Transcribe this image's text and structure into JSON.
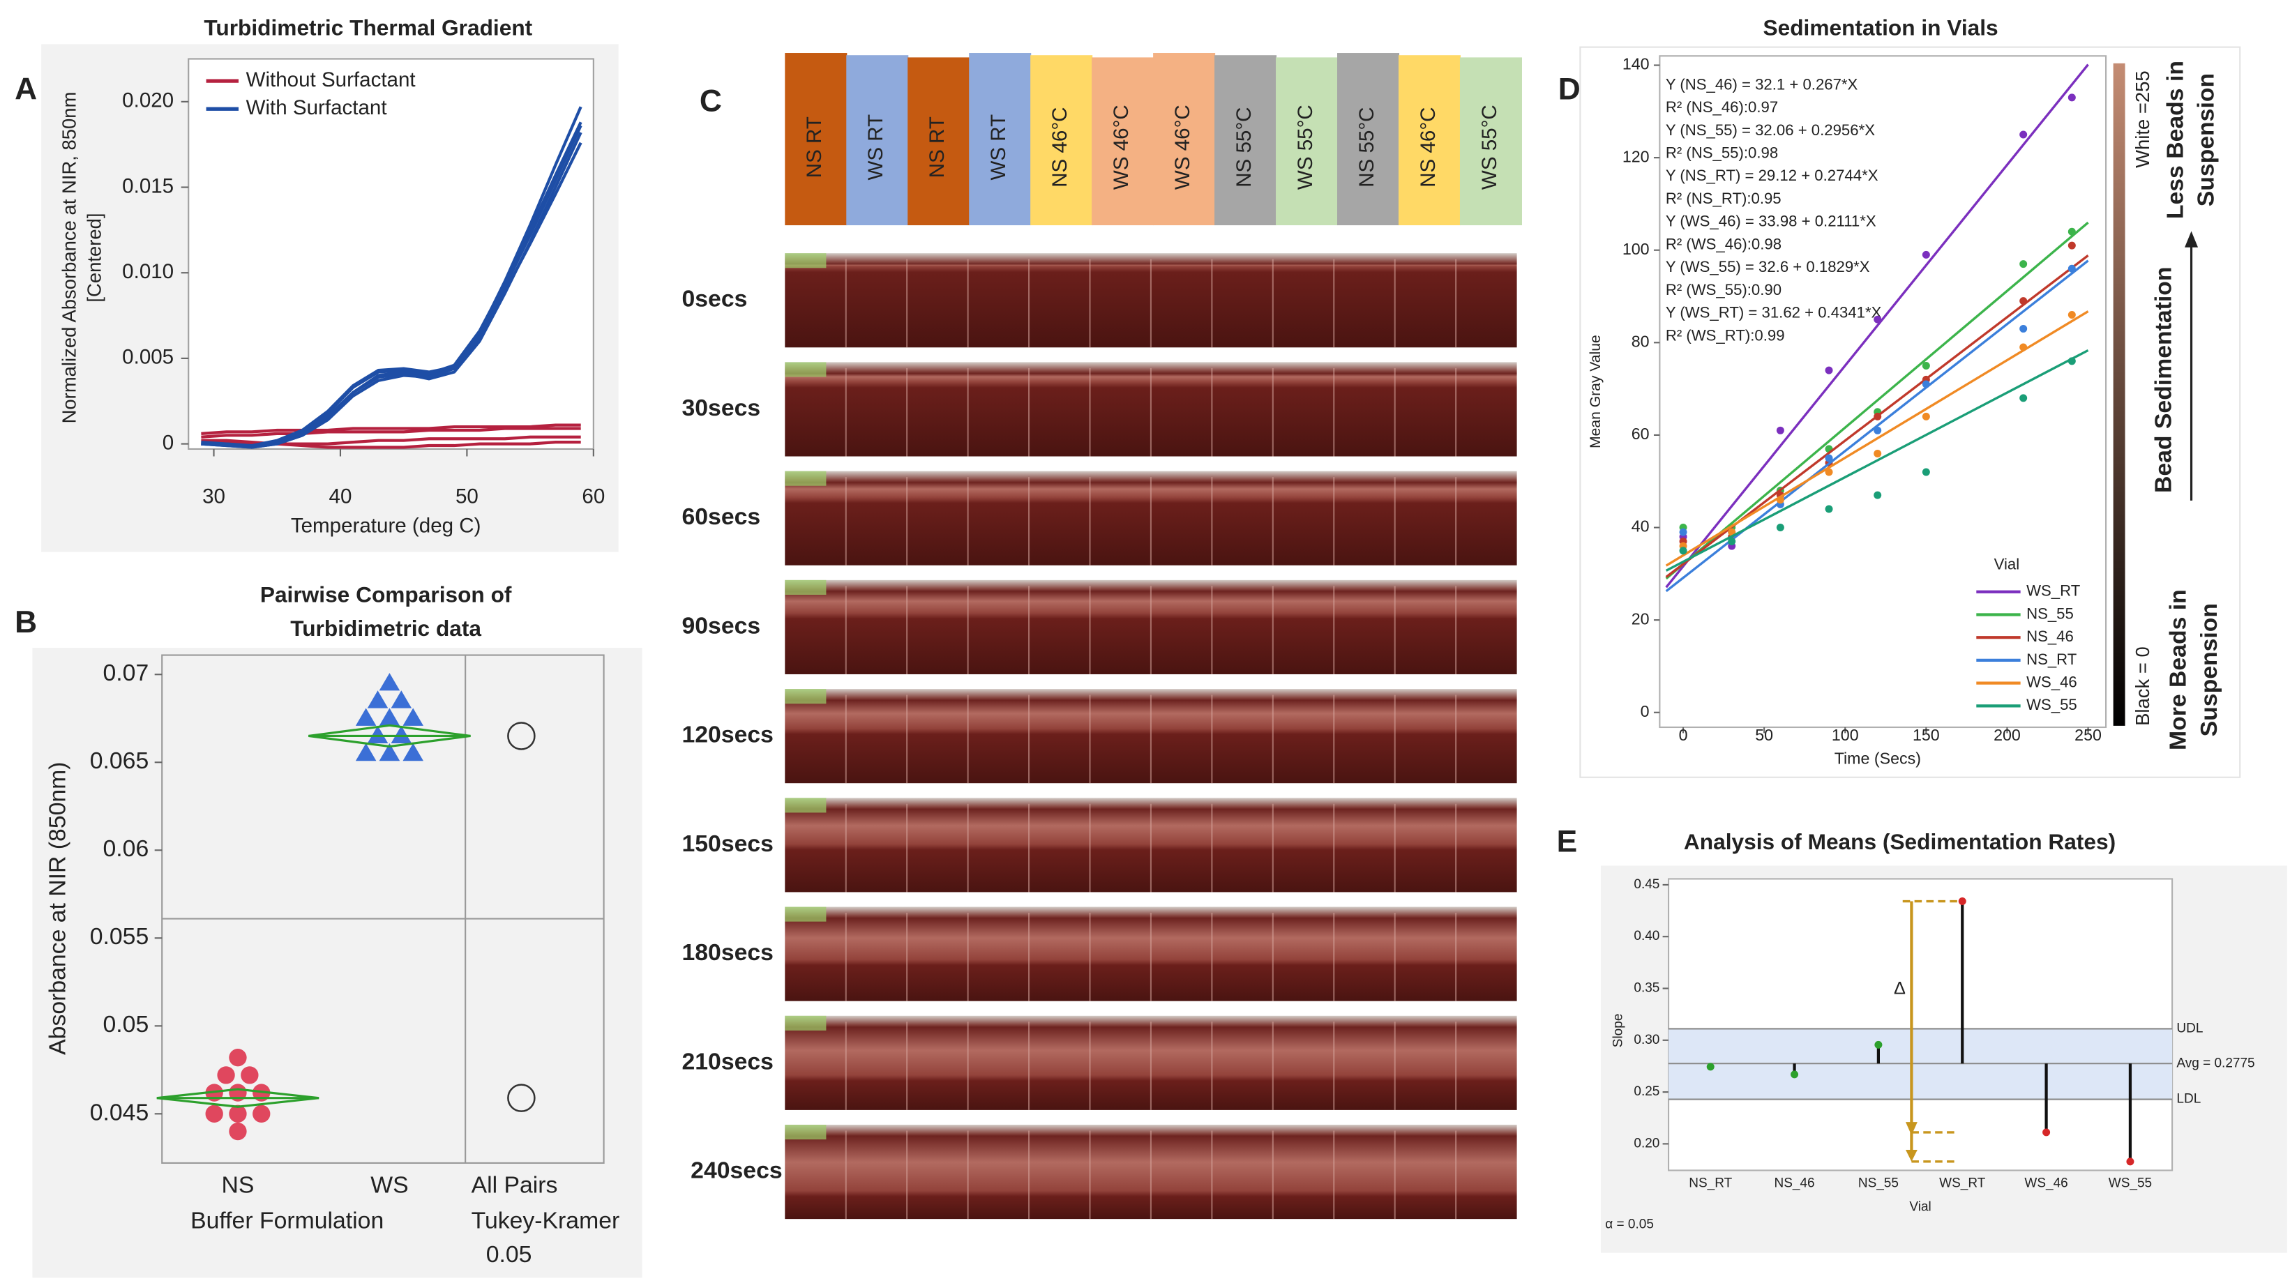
{
  "chart_data": [
    {
      "type": "line",
      "panel": "A",
      "title": "Turbidimetric Thermal Gradient",
      "x_label": "Temperature (deg C)",
      "y_label": [
        "Normalized Absorbance at NIR, 850nm",
        "[Centered]"
      ],
      "x": [
        29,
        31,
        33,
        35,
        37,
        39,
        41,
        43,
        45,
        47,
        49,
        51,
        53,
        55,
        57,
        59
      ],
      "xlim": [
        28,
        60
      ],
      "xticks": [
        30,
        40,
        50,
        60
      ],
      "ylim": [
        -0.0003,
        0.0225
      ],
      "yticks": [
        0,
        0.005,
        {
          "value": 0.01,
          "label": "0.010"
        },
        0.015,
        {
          "value": 0.02,
          "label": "0.020"
        }
      ],
      "legend": "upper left",
      "series": [
        {
          "name": "Without Surfactant",
          "color": "#b5213f",
          "values": [
            [
              0.0006,
              0.0007,
              0.0007,
              0.0008,
              0.0008,
              0.0008,
              0.0009,
              0.0009,
              0.0009,
              0.0009,
              0.001,
              0.001,
              0.001,
              0.001,
              0.0011,
              0.0011
            ],
            [
              0.0004,
              0.0005,
              0.0005,
              0.0006,
              0.0006,
              0.0007,
              0.0007,
              0.0007,
              0.0007,
              0.0008,
              0.0008,
              0.0008,
              0.0009,
              0.0009,
              0.0009,
              0.0009
            ],
            [
              0.0002,
              0.0002,
              0.0001,
              0,
              -0.0001,
              -0.0002,
              -0.0002,
              -0.0002,
              -0.0002,
              -0.0001,
              -0.0001,
              0,
              0,
              0,
              0.0001,
              0.0001
            ],
            [
              0.0001,
              0.0001,
              0,
              0,
              0,
              0,
              0.0001,
              0.0002,
              0.0002,
              0.0003,
              0.0003,
              0.0003,
              0.0003,
              0.0004,
              0.0004,
              0.0004
            ]
          ]
        },
        {
          "name": "With Surfactant",
          "color": "#1e4ea6",
          "values": [
            [
              0,
              -0.0001,
              -0.0002,
              0,
              0.0005,
              0.0015,
              0.003,
              0.004,
              0.0042,
              0.004,
              0.0045,
              0.0065,
              0.0095,
              0.0128,
              0.0163,
              0.0197
            ],
            [
              0,
              -0.0001,
              -0.0002,
              0.0001,
              0.0007,
              0.0018,
              0.0033,
              0.0042,
              0.0043,
              0.0041,
              0.0046,
              0.0066,
              0.0094,
              0.0125,
              0.0157,
              0.0188
            ],
            [
              0,
              0,
              -0.0001,
              0.0001,
              0.0006,
              0.0016,
              0.003,
              0.0039,
              0.0041,
              0.0038,
              0.0042,
              0.006,
              0.0088,
              0.0118,
              0.015,
              0.0182
            ],
            [
              0.0001,
              0,
              -0.0001,
              0.0002,
              0.0008,
              0.0019,
              0.0034,
              0.0043,
              0.0044,
              0.0042,
              0.0045,
              0.0062,
              0.0089,
              0.0117,
              0.0146,
              0.0176
            ],
            [
              0,
              0,
              -0.0002,
              0,
              0.0005,
              0.0014,
              0.0028,
              0.0037,
              0.004,
              0.0039,
              0.0044,
              0.0063,
              0.0092,
              0.0122,
              0.0154,
              0.0186
            ]
          ]
        }
      ]
    },
    {
      "type": "strip",
      "panel": "B",
      "title": [
        "Pairwise Comparison of",
        "Turbidimetric data"
      ],
      "y_label": "Absorbance at NIR (850nm)",
      "x_label": "Buffer Formulation",
      "categories": [
        "NS",
        "WS"
      ],
      "compare_label": [
        "All Pairs",
        "Tukey-Kramer"
      ],
      "alpha": 0.05,
      "ylim": [
        0.0422,
        0.0711
      ],
      "yticks": [
        0.045,
        0.05,
        0.055,
        0.06,
        0.065,
        0.07
      ],
      "grand_line": 0.0561,
      "groups": [
        {
          "marker": "circle",
          "color": "#e0475e",
          "values": [
            0.0482,
            0.0472,
            0.0472,
            0.0462,
            0.0462,
            0.0462,
            0.045,
            0.045,
            0.045,
            0.044
          ],
          "mean": 0.0459,
          "ci": 0.0005
        },
        {
          "marker": "triangle",
          "color": "#3b6fd6",
          "values": [
            0.0695,
            0.0685,
            0.0685,
            0.0675,
            0.0675,
            0.0675,
            0.0665,
            0.0665,
            0.0655,
            0.0655,
            0.0655
          ],
          "mean": 0.0665,
          "ci": 0.0006
        }
      ],
      "diamond_color": "#2ca02c"
    },
    {
      "type": "scatter",
      "panel": "D",
      "title": "Sedimentation in Vials",
      "x_label": "Time (Secs)",
      "y_label": "Mean Gray Value",
      "legend_title": "Vial",
      "legend": "lower right",
      "x": [
        0,
        30,
        60,
        90,
        120,
        150,
        210,
        240
      ],
      "xlim": [
        -14.5,
        261
      ],
      "xticks": [
        0,
        50,
        100,
        150,
        200,
        250
      ],
      "ylim": [
        -3.2,
        142
      ],
      "yticks": [
        0,
        20,
        40,
        60,
        80,
        100,
        120,
        140
      ],
      "series": [
        {
          "name": "WS_RT",
          "color": "#7b2fbe",
          "values": [
            38,
            36,
            61,
            74,
            85,
            99,
            125,
            133
          ],
          "intercept": 31.62,
          "slope": 0.4341
        },
        {
          "name": "NS_55",
          "color": "#3cb44b",
          "values": [
            40,
            40,
            48,
            57,
            65,
            75,
            97,
            104
          ],
          "intercept": 32.06,
          "slope": 0.2956
        },
        {
          "name": "NS_46",
          "color": "#c0392b",
          "values": [
            37,
            38,
            47,
            54,
            64,
            72,
            89,
            101
          ],
          "intercept": 32.1,
          "slope": 0.267
        },
        {
          "name": "NS_RT",
          "color": "#3b7fdb",
          "values": [
            39,
            39,
            45,
            55,
            61,
            71,
            83,
            96
          ],
          "intercept": 29.12,
          "slope": 0.2744
        },
        {
          "name": "WS_46",
          "color": "#f08a24",
          "values": [
            36,
            39,
            46,
            52,
            56,
            64,
            79,
            86
          ],
          "intercept": 33.98,
          "slope": 0.2111
        },
        {
          "name": "WS_55",
          "color": "#1a9e77",
          "values": [
            35,
            37,
            40,
            44,
            47,
            52,
            68,
            76
          ],
          "intercept": 32.6,
          "slope": 0.1829
        }
      ],
      "annotations": [
        "Y (NS_46) = 32.1 + 0.267*X",
        "R² (NS_46):0.97",
        "Y (NS_55) = 32.06 + 0.2956*X",
        "R² (NS_55):0.98",
        "Y (NS_RT) = 29.12 + 0.2744*X",
        "R² (NS_RT):0.95",
        "Y (WS_46) = 33.98 + 0.2111*X",
        "R² (WS_46):0.98",
        "Y (WS_55) = 32.6 + 0.1829*X",
        "R² (WS_55):0.90",
        "Y (WS_RT) = 31.62 + 0.4341*X",
        "R² (WS_RT):0.99"
      ],
      "colorbar": {
        "colors": [
          "#000000",
          "#c48c73"
        ],
        "top_label": "White =255",
        "bottom_label": "Black = 0",
        "top_text": [
          "Less Beads in",
          "Suspension"
        ],
        "middle_text": "Bead Sedimentation",
        "bottom_text": [
          "More Beads in",
          "Suspension"
        ]
      }
    },
    {
      "type": "anom",
      "panel": "E",
      "title": "Analysis of Means (Sedimentation Rates)",
      "x_label": "Vial",
      "y_label": "Slope",
      "alpha_label": "α = 0.05",
      "delta_label": "Δ",
      "categories": [
        "NS_RT",
        "NS_46",
        "NS_55",
        "WS_RT",
        "WS_46",
        "WS_55"
      ],
      "values": [
        0.2744,
        0.267,
        0.2956,
        0.4341,
        0.2111,
        0.1829
      ],
      "center": 0.2775,
      "center_label": "Avg = 0.2775",
      "udl": 0.311,
      "udl_label": "UDL",
      "ldl": 0.243,
      "ldl_label": "LDL",
      "ylim": [
        0.1744,
        0.4557
      ],
      "yticks": [
        {
          "value": 0.2,
          "label": "0.20"
        },
        0.25,
        {
          "value": 0.3,
          "label": "0.30"
        },
        0.35,
        {
          "value": 0.4,
          "label": "0.40"
        },
        0.45
      ],
      "in_color": "#2ca02c",
      "out_color": "#d62728",
      "band_color": "#dde7f7",
      "arrow_color": "#c8961e"
    }
  ],
  "photo_panel": {
    "panel": "C",
    "columns": [
      {
        "label": "NS RT",
        "color": "#c55a11"
      },
      {
        "label": "WS RT",
        "color": "#8faadc"
      },
      {
        "label": "NS RT",
        "color": "#c55a11"
      },
      {
        "label": "WS RT",
        "color": "#8faadc"
      },
      {
        "label": "NS 46°C",
        "color": "#ffd966"
      },
      {
        "label": "WS 46°C",
        "color": "#f4b183"
      },
      {
        "label": "WS 46°C",
        "color": "#f4b183"
      },
      {
        "label": "NS 55°C",
        "color": "#a6a6a6"
      },
      {
        "label": "WS 55°C",
        "color": "#c5e0b4"
      },
      {
        "label": "NS 55°C",
        "color": "#a6a6a6"
      },
      {
        "label": "NS 46°C",
        "color": "#ffd966"
      },
      {
        "label": "WS 55°C",
        "color": "#c5e0b4"
      }
    ],
    "rows": [
      "0secs",
      "30secs",
      "60secs",
      "90secs",
      "120secs",
      "150secs",
      "180secs",
      "210secs",
      "240secs"
    ]
  }
}
